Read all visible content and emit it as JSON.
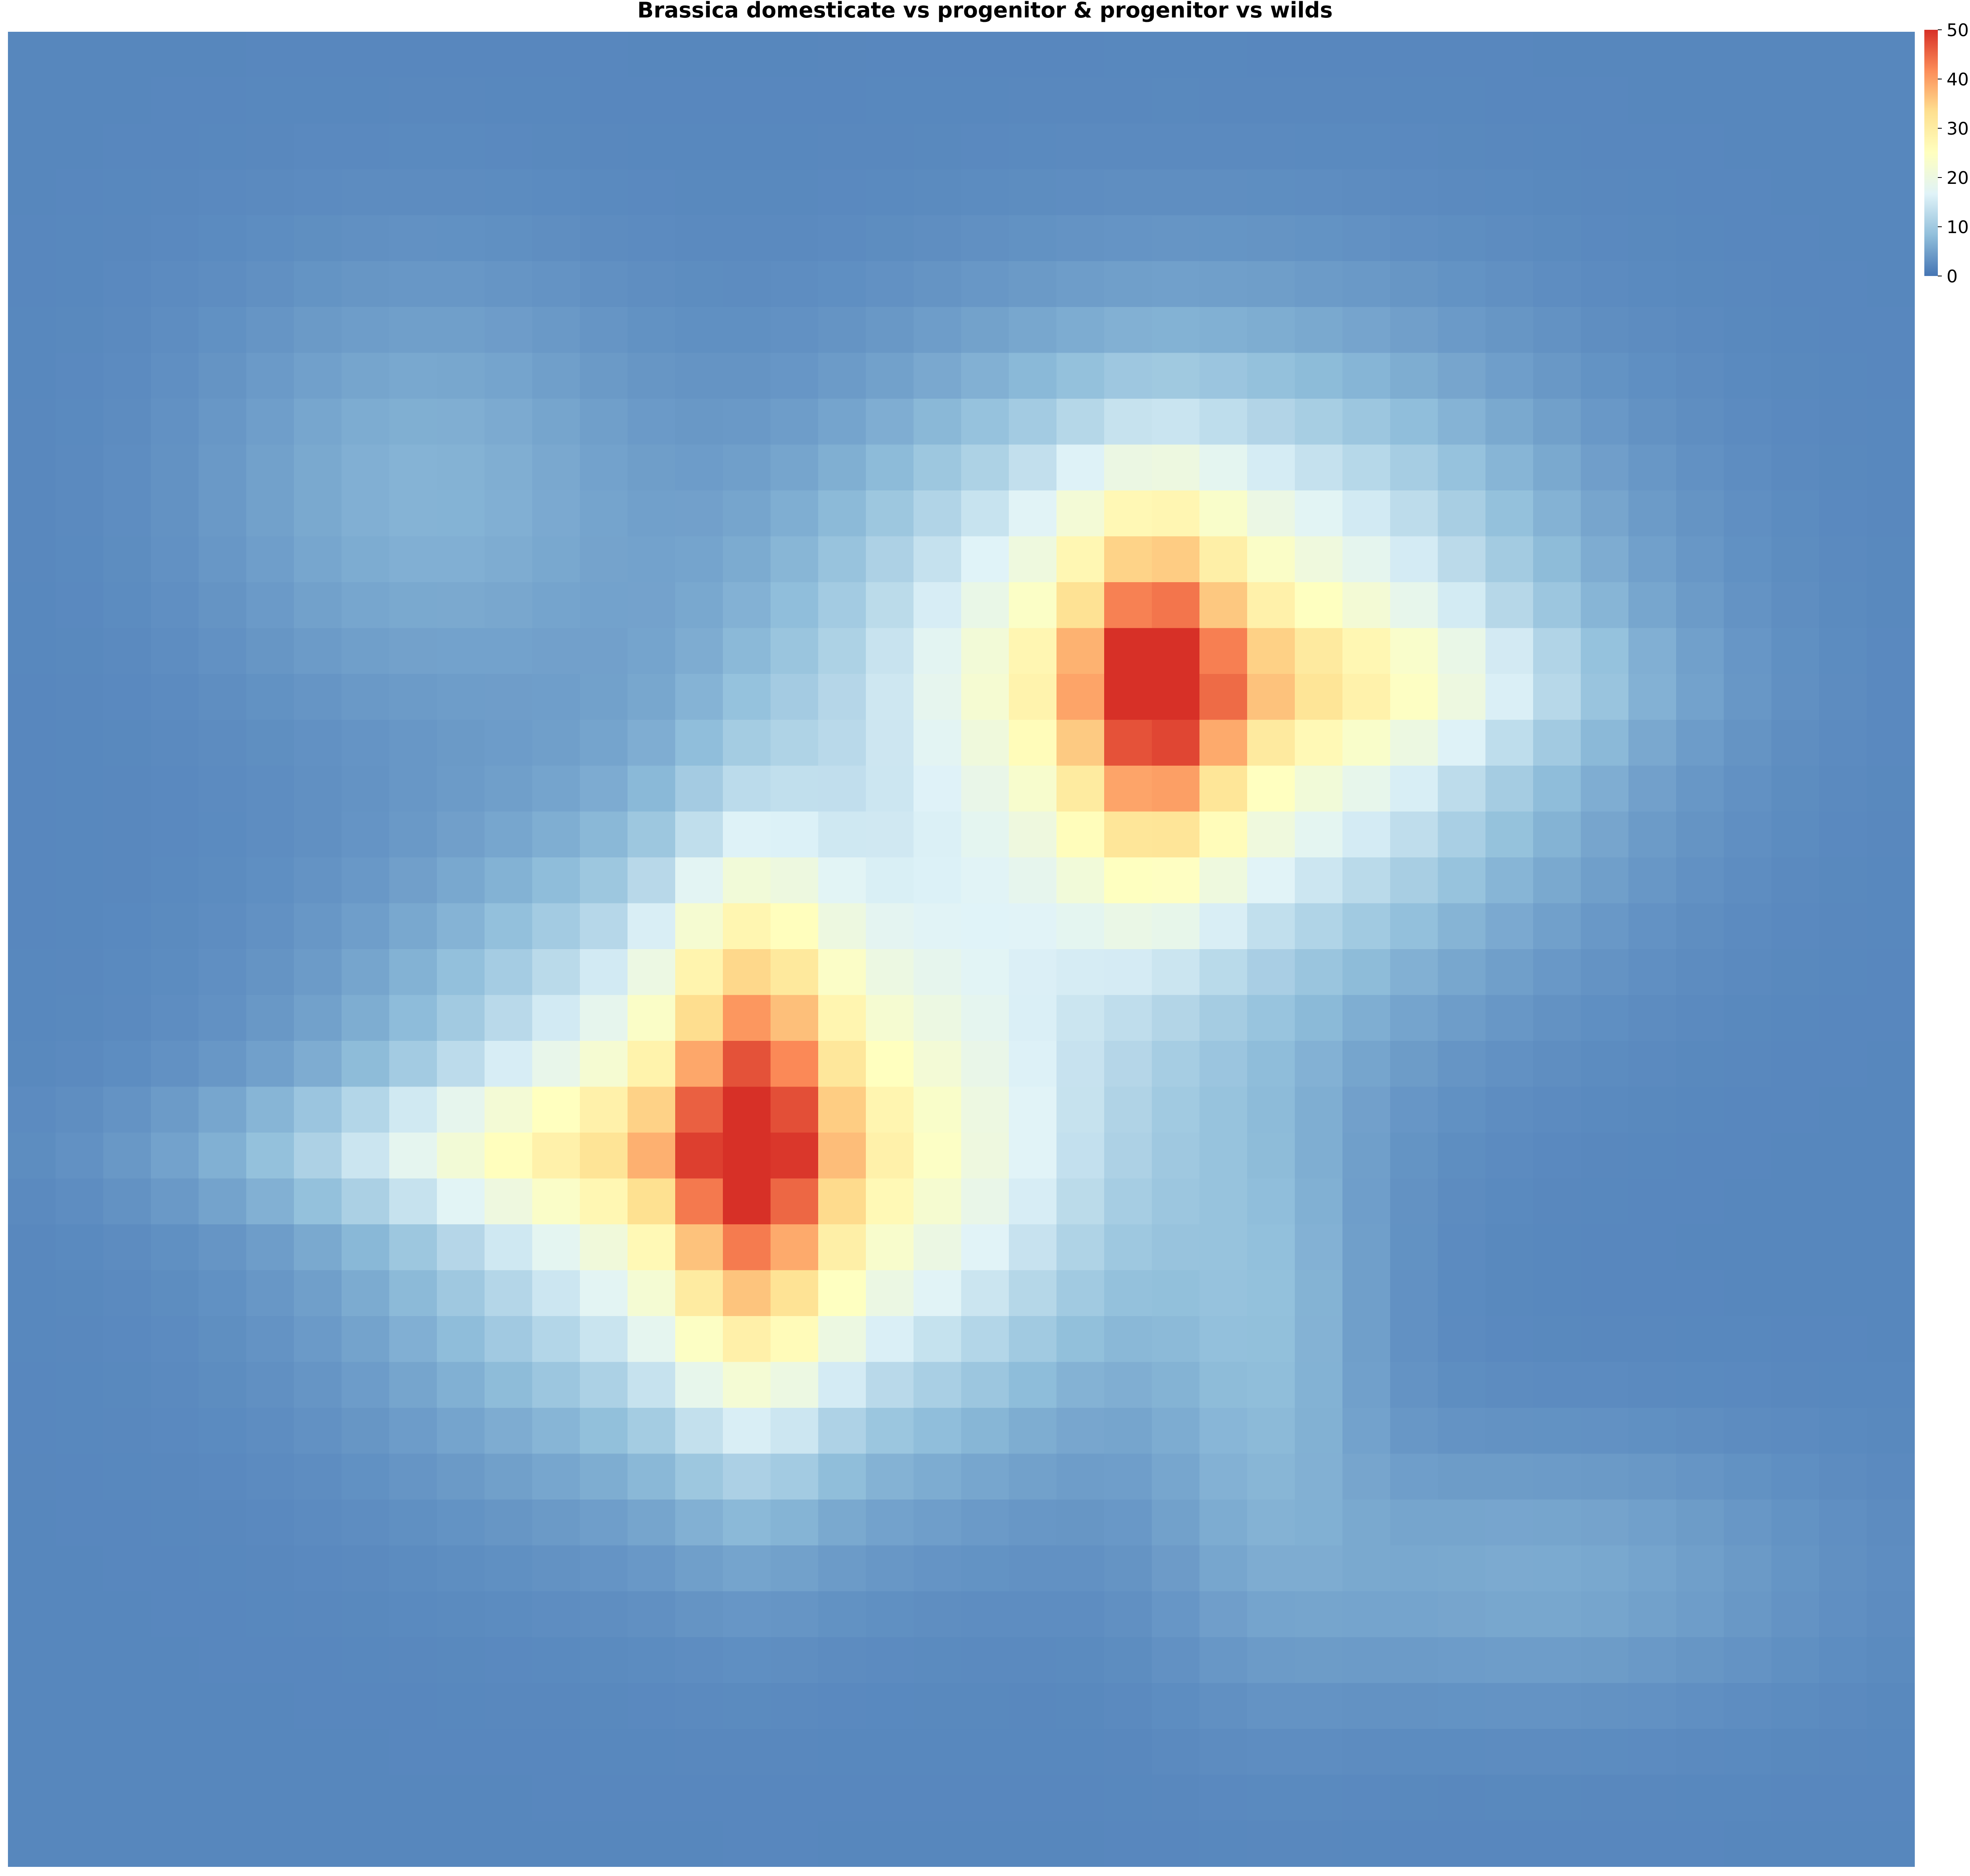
{
  "chart_data": {
    "type": "heatmap",
    "title": "Brassica domesticate vs progenitor & progenitor vs wilds",
    "xlabel": "",
    "ylabel": "",
    "grid": false,
    "legend": "right",
    "value_range": [
      0,
      50
    ],
    "colorbar": {
      "ticks": [
        0,
        10,
        20,
        30,
        40,
        50
      ],
      "tick_labels": [
        "0",
        "10",
        "20",
        "30",
        "40",
        "50"
      ],
      "colors": [
        "#4575b4",
        "#91bfdb",
        "#e0f3f8",
        "#ffffbf",
        "#fee090",
        "#fc8d59",
        "#d73027"
      ]
    },
    "grid_size": [
      40,
      40
    ],
    "background_value": 2,
    "blobs": [
      {
        "cx": 0.62,
        "cy": 0.35,
        "sx": 0.12,
        "sy": 0.1,
        "amp": 26
      },
      {
        "cx": 0.6,
        "cy": 0.36,
        "sx": 0.03,
        "sy": 0.07,
        "amp": 22
      },
      {
        "cx": 0.68,
        "cy": 0.355,
        "sx": 0.1,
        "sy": 0.025,
        "amp": 8
      },
      {
        "cx": 0.4,
        "cy": 0.61,
        "sx": 0.12,
        "sy": 0.1,
        "amp": 26
      },
      {
        "cx": 0.39,
        "cy": 0.6,
        "sx": 0.03,
        "sy": 0.1,
        "amp": 22
      },
      {
        "cx": 0.28,
        "cy": 0.61,
        "sx": 0.11,
        "sy": 0.025,
        "amp": 10
      },
      {
        "cx": 0.22,
        "cy": 0.25,
        "sx": 0.08,
        "sy": 0.08,
        "amp": 5
      },
      {
        "cx": 0.66,
        "cy": 0.72,
        "sx": 0.04,
        "sy": 0.1,
        "amp": 5
      },
      {
        "cx": 0.8,
        "cy": 0.84,
        "sx": 0.1,
        "sy": 0.05,
        "amp": 4
      }
    ]
  }
}
